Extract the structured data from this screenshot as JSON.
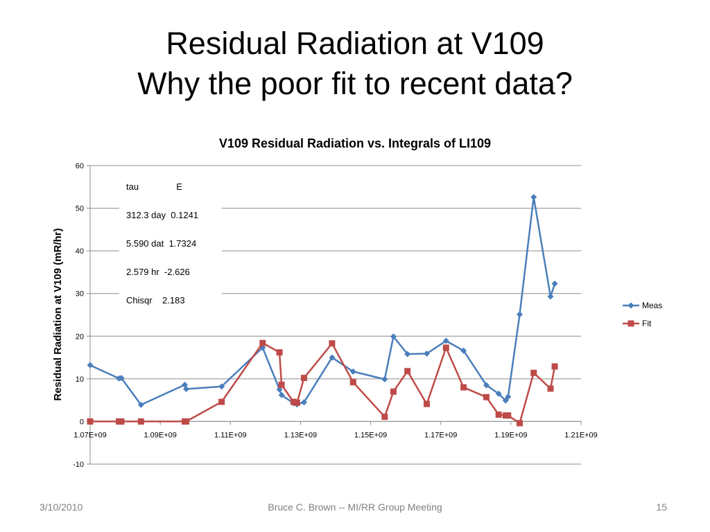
{
  "slide": {
    "title_line1": "Residual Radiation at V109",
    "title_line2": "Why the poor fit to recent data?",
    "footer_date": "3/10/2010",
    "footer_center": "Bruce C. Brown -- MI/RR Group Meeting",
    "footer_page": "15"
  },
  "fit_params": {
    "header": "tau               E",
    "row1": "312.3 day  0.1241",
    "row2": "5.590 dat  1.7324",
    "row3": "2.579 hr  -2.626",
    "row4": "Chisqr    2.183"
  },
  "chart_data": {
    "type": "scatter",
    "title": "V109 Residual Radiation vs. Integrals of LI109",
    "xlabel": "",
    "ylabel": "Residual Radiation at V109 (mR/hr)",
    "xlim": [
      1070000000,
      1210000000
    ],
    "ylim": [
      -10,
      60
    ],
    "x_ticks": [
      1070000000,
      1090000000,
      1110000000,
      1130000000,
      1150000000,
      1170000000,
      1190000000,
      1210000000
    ],
    "x_tick_labels": [
      "1.07E+09",
      "1.09E+09",
      "1.11E+09",
      "1.13E+09",
      "1.15E+09",
      "1.17E+09",
      "1.19E+09",
      "1.21E+09"
    ],
    "y_ticks": [
      -10,
      0,
      10,
      20,
      30,
      40,
      50,
      60
    ],
    "y_tick_labels": [
      "-10",
      "0",
      "10",
      "20",
      "30",
      "40",
      "50",
      "60"
    ],
    "grid": true,
    "legend_position": "right",
    "series": [
      {
        "name": "Meas",
        "color": "#4a7ebb",
        "marker": "diamond",
        "points": [
          [
            1070000000,
            13.2
          ],
          [
            1078200000,
            10.1
          ],
          [
            1078900000,
            10.2
          ],
          [
            1084500000,
            3.9
          ],
          [
            1097000000,
            8.6
          ],
          [
            1097400000,
            7.6
          ],
          [
            1107500000,
            8.2
          ],
          [
            1119200000,
            17.3
          ],
          [
            1124000000,
            7.5
          ],
          [
            1124600000,
            6.2
          ],
          [
            1128000000,
            4.3
          ],
          [
            1129000000,
            4.0
          ],
          [
            1131000000,
            4.5
          ],
          [
            1139000000,
            15.0
          ],
          [
            1145000000,
            11.7
          ],
          [
            1154000000,
            9.9
          ],
          [
            1156500000,
            19.9
          ],
          [
            1160500000,
            15.8
          ],
          [
            1166000000,
            15.9
          ],
          [
            1171500000,
            18.9
          ],
          [
            1176500000,
            16.6
          ],
          [
            1183000000,
            8.5
          ],
          [
            1186500000,
            6.5
          ],
          [
            1188500000,
            4.9
          ],
          [
            1189200000,
            5.8
          ],
          [
            1192500000,
            25.1
          ],
          [
            1196500000,
            52.6
          ],
          [
            1201300000,
            29.3
          ],
          [
            1202500000,
            32.3
          ]
        ]
      },
      {
        "name": "Fit",
        "color": "#be4b48",
        "marker": "square",
        "points": [
          [
            1070000000,
            0.0
          ],
          [
            1078200000,
            0.0
          ],
          [
            1078900000,
            0.0
          ],
          [
            1084500000,
            0.0
          ],
          [
            1097000000,
            0.0
          ],
          [
            1097400000,
            0.0
          ],
          [
            1107500000,
            4.6
          ],
          [
            1119200000,
            18.4
          ],
          [
            1124000000,
            16.2
          ],
          [
            1124600000,
            8.6
          ],
          [
            1128000000,
            4.6
          ],
          [
            1129000000,
            4.4
          ],
          [
            1131000000,
            10.2
          ],
          [
            1139000000,
            18.3
          ],
          [
            1145000000,
            9.2
          ],
          [
            1154000000,
            1.1
          ],
          [
            1156500000,
            7.0
          ],
          [
            1160500000,
            11.8
          ],
          [
            1166000000,
            4.1
          ],
          [
            1171500000,
            17.3
          ],
          [
            1176500000,
            8.0
          ],
          [
            1183000000,
            5.7
          ],
          [
            1186500000,
            1.6
          ],
          [
            1188500000,
            1.4
          ],
          [
            1189200000,
            1.4
          ],
          [
            1192500000,
            -0.4
          ],
          [
            1196500000,
            11.4
          ],
          [
            1201300000,
            7.7
          ],
          [
            1202500000,
            12.9
          ]
        ]
      }
    ]
  }
}
